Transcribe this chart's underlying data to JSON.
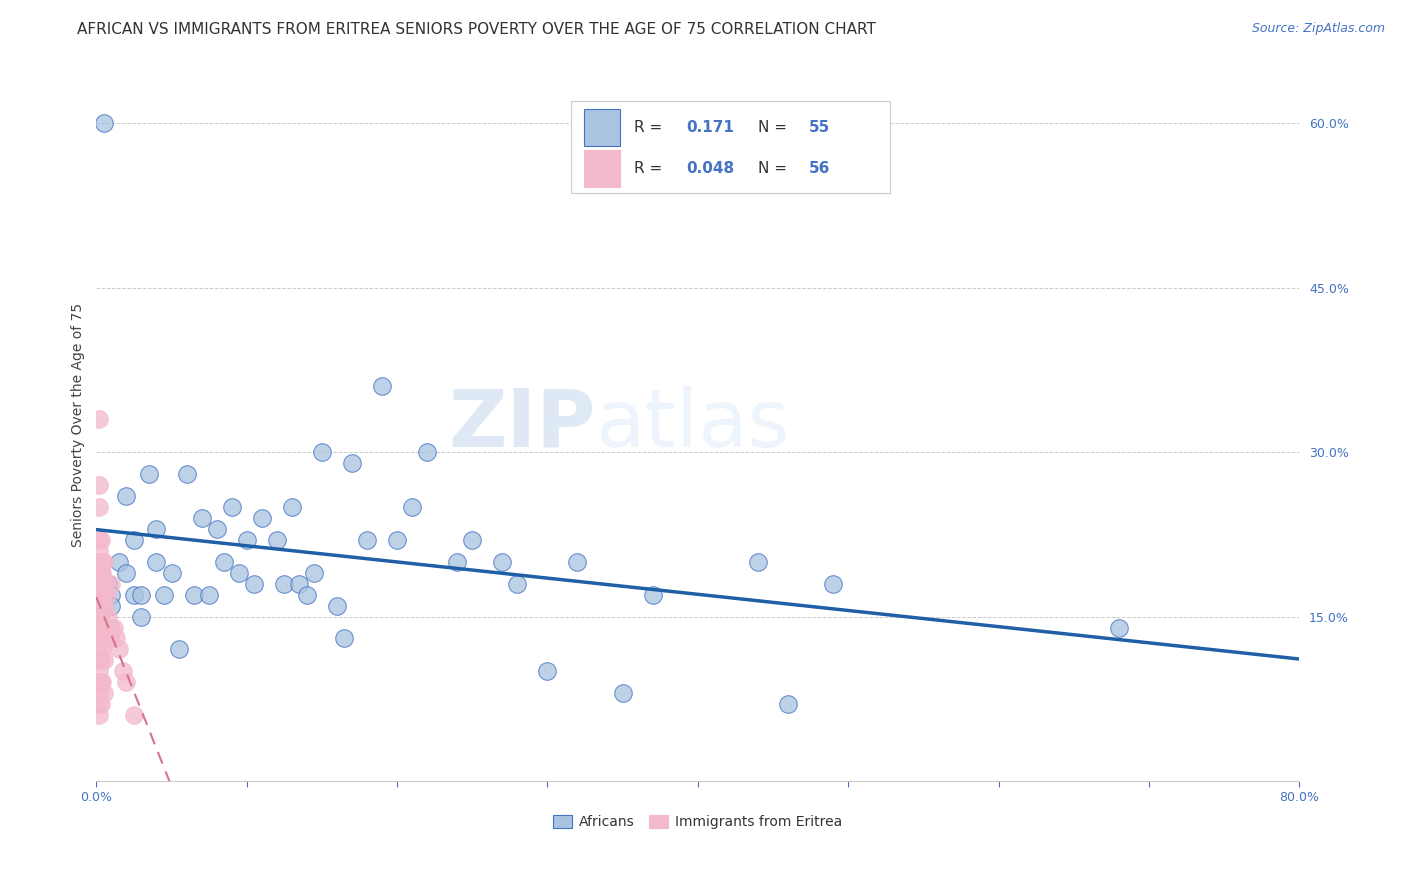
{
  "title": "AFRICAN VS IMMIGRANTS FROM ERITREA SENIORS POVERTY OVER THE AGE OF 75 CORRELATION CHART",
  "source": "Source: ZipAtlas.com",
  "ylabel": "Seniors Poverty Over the Age of 75",
  "watermark_zip": "ZIP",
  "watermark_atlas": "atlas",
  "xlim": [
    0.0,
    0.8
  ],
  "ylim": [
    0.0,
    0.65
  ],
  "yticks_right": [
    0.15,
    0.3,
    0.45,
    0.6
  ],
  "yticklabels_right": [
    "15.0%",
    "30.0%",
    "45.0%",
    "60.0%"
  ],
  "africans_R": "0.171",
  "africans_N": "55",
  "eritrea_R": "0.048",
  "eritrea_N": "56",
  "color_african_fill": "#a8c4e0",
  "color_african_edge": "#4472c4",
  "color_eritrea_fill": "#f4b8cb",
  "color_eritrea_edge": "#f4b8cb",
  "color_african_line": "#1f5fa6",
  "color_eritrea_line": "#d4748c",
  "africans_x": [
    0.005,
    0.008,
    0.01,
    0.01,
    0.015,
    0.02,
    0.02,
    0.025,
    0.025,
    0.03,
    0.03,
    0.035,
    0.04,
    0.04,
    0.045,
    0.05,
    0.055,
    0.06,
    0.065,
    0.07,
    0.075,
    0.08,
    0.085,
    0.09,
    0.095,
    0.1,
    0.105,
    0.11,
    0.12,
    0.125,
    0.13,
    0.135,
    0.14,
    0.145,
    0.15,
    0.16,
    0.165,
    0.17,
    0.18,
    0.19,
    0.2,
    0.21,
    0.22,
    0.24,
    0.25,
    0.27,
    0.28,
    0.3,
    0.32,
    0.35,
    0.37,
    0.44,
    0.46,
    0.49,
    0.68
  ],
  "africans_y": [
    0.6,
    0.18,
    0.17,
    0.16,
    0.2,
    0.26,
    0.19,
    0.17,
    0.22,
    0.17,
    0.15,
    0.28,
    0.23,
    0.2,
    0.17,
    0.19,
    0.12,
    0.28,
    0.17,
    0.24,
    0.17,
    0.23,
    0.2,
    0.25,
    0.19,
    0.22,
    0.18,
    0.24,
    0.22,
    0.18,
    0.25,
    0.18,
    0.17,
    0.19,
    0.3,
    0.16,
    0.13,
    0.29,
    0.22,
    0.36,
    0.22,
    0.25,
    0.3,
    0.2,
    0.22,
    0.2,
    0.18,
    0.1,
    0.2,
    0.08,
    0.17,
    0.2,
    0.07,
    0.18,
    0.14
  ],
  "eritrea_x": [
    0.002,
    0.002,
    0.002,
    0.002,
    0.002,
    0.002,
    0.002,
    0.002,
    0.002,
    0.002,
    0.002,
    0.002,
    0.002,
    0.002,
    0.002,
    0.002,
    0.002,
    0.002,
    0.002,
    0.002,
    0.003,
    0.003,
    0.003,
    0.003,
    0.003,
    0.003,
    0.003,
    0.003,
    0.003,
    0.003,
    0.004,
    0.004,
    0.004,
    0.004,
    0.004,
    0.004,
    0.004,
    0.005,
    0.005,
    0.005,
    0.005,
    0.005,
    0.005,
    0.006,
    0.006,
    0.007,
    0.008,
    0.009,
    0.01,
    0.01,
    0.012,
    0.013,
    0.015,
    0.018,
    0.02,
    0.025
  ],
  "eritrea_y": [
    0.33,
    0.27,
    0.25,
    0.22,
    0.21,
    0.2,
    0.19,
    0.18,
    0.17,
    0.16,
    0.15,
    0.14,
    0.13,
    0.12,
    0.11,
    0.1,
    0.09,
    0.08,
    0.07,
    0.06,
    0.22,
    0.2,
    0.19,
    0.18,
    0.17,
    0.15,
    0.13,
    0.11,
    0.09,
    0.07,
    0.2,
    0.19,
    0.17,
    0.16,
    0.14,
    0.12,
    0.09,
    0.2,
    0.18,
    0.16,
    0.14,
    0.11,
    0.08,
    0.18,
    0.13,
    0.17,
    0.15,
    0.13,
    0.18,
    0.14,
    0.14,
    0.13,
    0.12,
    0.1,
    0.09,
    0.06
  ],
  "title_fontsize": 11,
  "source_fontsize": 9,
  "axis_label_fontsize": 10,
  "tick_fontsize": 9,
  "background_color": "#ffffff",
  "grid_color": "#cccccc"
}
